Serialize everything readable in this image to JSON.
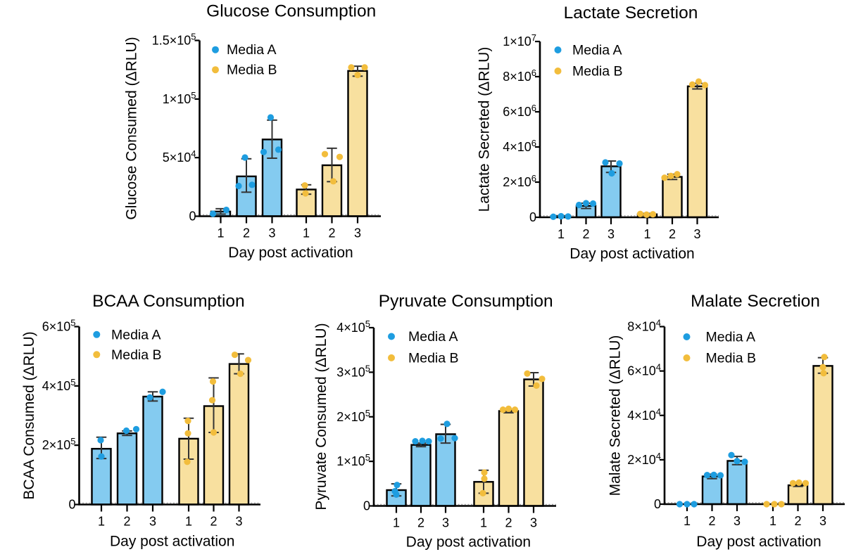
{
  "figure": {
    "background": "#ffffff",
    "legend": {
      "items": [
        "Media A",
        "Media B"
      ]
    },
    "colors": {
      "media_a_point": "#1E9DE0",
      "media_a_bar_fill": "#84CBF0",
      "media_b_point": "#F2BD3C",
      "media_b_bar_fill": "#F8E09F",
      "bar_outline": "#000000",
      "axis": "#000000",
      "error_bar": "#333333",
      "text": "#000000",
      "zero_line_dashes": "#999999"
    }
  },
  "chart_data": [
    {
      "type": "bar",
      "title": "Glucose Consumption",
      "xlabel": "Day post activation",
      "ylabel": "Glucose Consumed (ΔRLU)",
      "categories": [
        "1",
        "2",
        "3",
        "1",
        "2",
        "3"
      ],
      "ylim": [
        0,
        150000
      ],
      "grid": false,
      "legend_position": "top-left-inside",
      "legend": [
        "Media A",
        "Media B"
      ],
      "yticks": [
        {
          "value": 0,
          "base": "0",
          "exp": ""
        },
        {
          "value": 50000,
          "base": "5×10",
          "exp": "4"
        },
        {
          "value": 100000,
          "base": "1×10",
          "exp": "5"
        },
        {
          "value": 150000,
          "base": "1.5×10",
          "exp": "5"
        }
      ],
      "series": [
        {
          "name": "Media A",
          "bars": [
            {
              "mean": 4000,
              "err": [
                1800,
                6400
              ],
              "points": [
                {
                  "dx": -11,
                  "v": 2100
                },
                {
                  "dx": 8,
                  "v": 5400
                }
              ]
            },
            {
              "mean": 34000,
              "err": [
                20500,
                49000
              ],
              "points": [
                {
                  "dx": -11,
                  "v": 25800
                },
                {
                  "dx": 8,
                  "v": 26800
                },
                {
                  "dx": -2,
                  "v": 50100
                }
              ]
            },
            {
              "mean": 65500,
              "err": [
                49500,
                82000
              ],
              "points": [
                {
                  "dx": -12,
                  "v": 54800
                },
                {
                  "dx": 9,
                  "v": 56800
                },
                {
                  "dx": -2,
                  "v": 84300
                }
              ]
            }
          ]
        },
        {
          "name": "Media B",
          "bars": [
            {
              "mean": 22800,
              "err": [
                18800,
                26800
              ],
              "points": [
                {
                  "dx": -2,
                  "v": 26300
                },
                {
                  "dx": -1,
                  "v": 19500
                }
              ]
            },
            {
              "mean": 43500,
              "err": [
                29500,
                58000
              ],
              "points": [
                {
                  "dx": -10,
                  "v": 53000
                },
                {
                  "dx": 11,
                  "v": 50600
                },
                {
                  "dx": 2,
                  "v": 29800
                }
              ]
            },
            {
              "mean": 124000,
              "err": [
                119500,
                128000
              ],
              "points": [
                {
                  "dx": -9,
                  "v": 127000
                },
                {
                  "dx": 10,
                  "v": 127000
                },
                {
                  "dx": 0,
                  "v": 120500
                }
              ]
            }
          ]
        }
      ]
    },
    {
      "type": "bar",
      "title": "Lactate Secretion",
      "xlabel": "Day post activation",
      "ylabel": "Lactate Secreted (ΔRLU)",
      "categories": [
        "1",
        "2",
        "3",
        "1",
        "2",
        "3"
      ],
      "ylim": [
        0,
        10000000
      ],
      "grid": false,
      "legend_position": "top-left-inside",
      "legend": [
        "Media A",
        "Media B"
      ],
      "yticks": [
        {
          "value": 0,
          "base": "0",
          "exp": ""
        },
        {
          "value": 2000000,
          "base": "2×10",
          "exp": "6"
        },
        {
          "value": 4000000,
          "base": "4×10",
          "exp": "6"
        },
        {
          "value": 6000000,
          "base": "6×10",
          "exp": "6"
        },
        {
          "value": 8000000,
          "base": "8×10",
          "exp": "6"
        },
        {
          "value": 10000000,
          "base": "1×10",
          "exp": "7"
        }
      ],
      "series": [
        {
          "name": "Media A",
          "bars": [
            {
              "mean": 60000,
              "err": [
                30000,
                90000
              ],
              "points": [
                {
                  "dx": -11,
                  "v": 30000
                },
                {
                  "dx": 0,
                  "v": 60000
                },
                {
                  "dx": 10,
                  "v": 45000
                }
              ]
            },
            {
              "mean": 650000,
              "err": [
                500000,
                800000
              ],
              "points": [
                {
                  "dx": -10,
                  "v": 700000
                },
                {
                  "dx": 0,
                  "v": 800000
                },
                {
                  "dx": 10,
                  "v": 780000
                }
              ]
            },
            {
              "mean": 2900000,
              "err": [
                2550000,
                3200000
              ],
              "points": [
                {
                  "dx": -8,
                  "v": 3120000
                },
                {
                  "dx": 12,
                  "v": 3060000
                },
                {
                  "dx": 1,
                  "v": 2500000
                }
              ]
            }
          ]
        },
        {
          "name": "Media B",
          "bars": [
            {
              "mean": 170000,
              "err": [
                120000,
                220000
              ],
              "points": [
                {
                  "dx": -10,
                  "v": 190000
                },
                {
                  "dx": -1,
                  "v": 150000
                },
                {
                  "dx": 8,
                  "v": 170000
                }
              ]
            },
            {
              "mean": 2300000,
              "err": [
                2150000,
                2450000
              ],
              "points": [
                {
                  "dx": -11,
                  "v": 2250000
                },
                {
                  "dx": -2,
                  "v": 2350000
                },
                {
                  "dx": 7,
                  "v": 2450000
                }
              ]
            },
            {
              "mean": 7450000,
              "err": [
                7300000,
                7620000
              ],
              "points": [
                {
                  "dx": -7,
                  "v": 7550000
                },
                {
                  "dx": 2,
                  "v": 7720000
                },
                {
                  "dx": 11,
                  "v": 7520000
                }
              ]
            }
          ]
        }
      ]
    },
    {
      "type": "bar",
      "title": "BCAA Consumption",
      "xlabel": "Day post activation",
      "ylabel": "BCAA Consumed (ΔRLU)",
      "categories": [
        "1",
        "2",
        "3",
        "1",
        "2",
        "3"
      ],
      "ylim": [
        0,
        600000
      ],
      "grid": false,
      "legend_position": "top-left-inside",
      "legend": [
        "Media A",
        "Media B"
      ],
      "yticks": [
        {
          "value": 0,
          "base": "0",
          "exp": ""
        },
        {
          "value": 200000,
          "base": "2×10",
          "exp": "5"
        },
        {
          "value": 400000,
          "base": "4×10",
          "exp": "5"
        },
        {
          "value": 600000,
          "base": "6×10",
          "exp": "5"
        }
      ],
      "series": [
        {
          "name": "Media A",
          "bars": [
            {
              "mean": 188000,
              "err": [
                155000,
                227000
              ],
              "points": [
                {
                  "dx": -1,
                  "v": 217000
                },
                {
                  "dx": 0,
                  "v": 162000
                }
              ]
            },
            {
              "mean": 240000,
              "err": [
                233000,
                248000
              ],
              "points": [
                {
                  "dx": -1,
                  "v": 249000
                },
                {
                  "dx": 13,
                  "v": 254000
                }
              ]
            },
            {
              "mean": 364000,
              "err": [
                349000,
                380000
              ],
              "points": [
                {
                  "dx": -4,
                  "v": 361000
                },
                {
                  "dx": 14,
                  "v": 380000
                }
              ]
            }
          ]
        },
        {
          "name": "Media B",
          "bars": [
            {
              "mean": 222000,
              "err": [
                153000,
                291000
              ],
              "points": [
                {
                  "dx": -1,
                  "v": 282000
                },
                {
                  "dx": -1,
                  "v": 240000
                },
                {
                  "dx": -2,
                  "v": 144000
                }
              ]
            },
            {
              "mean": 332000,
              "err": [
                243000,
                427000
              ],
              "points": [
                {
                  "dx": -1,
                  "v": 415000
                },
                {
                  "dx": -2,
                  "v": 352000
                },
                {
                  "dx": 0,
                  "v": 243000
                }
              ]
            },
            {
              "mean": 474000,
              "err": [
                441000,
                508000
              ],
              "points": [
                {
                  "dx": -6,
                  "v": 505000
                },
                {
                  "dx": 13,
                  "v": 487000
                },
                {
                  "dx": 2,
                  "v": 441000
                }
              ]
            }
          ]
        }
      ]
    },
    {
      "type": "bar",
      "title": "Pyruvate Consumption",
      "xlabel": "Day post activation",
      "ylabel": "Pyruvate Consumed (ΔRLU)",
      "categories": [
        "1",
        "2",
        "3",
        "1",
        "2",
        "3"
      ],
      "ylim": [
        0,
        400000
      ],
      "grid": false,
      "legend_position": "top-left-inside",
      "legend": [
        "Media A",
        "Media B"
      ],
      "yticks": [
        {
          "value": 0,
          "base": "0",
          "exp": ""
        },
        {
          "value": 100000,
          "base": "1×10",
          "exp": "5"
        },
        {
          "value": 200000,
          "base": "2×10",
          "exp": "5"
        },
        {
          "value": 300000,
          "base": "3×10",
          "exp": "5"
        },
        {
          "value": 400000,
          "base": "4×10",
          "exp": "5"
        }
      ],
      "series": [
        {
          "name": "Media A",
          "bars": [
            {
              "mean": 35500,
              "err": [
                22500,
                49500
              ],
              "points": [
                {
                  "dx": 1,
                  "v": 47000
                },
                {
                  "dx": -2,
                  "v": 33000
                },
                {
                  "dx": 0,
                  "v": 25500
                }
              ]
            },
            {
              "mean": 137000,
              "err": [
                133000,
                141000
              ],
              "points": [
                {
                  "dx": -8,
                  "v": 145000
                },
                {
                  "dx": 2,
                  "v": 146000
                },
                {
                  "dx": 11,
                  "v": 145000
                }
              ]
            },
            {
              "mean": 161000,
              "err": [
                141000,
                183000
              ],
              "points": [
                {
                  "dx": -7,
                  "v": 151000
                },
                {
                  "dx": 13,
                  "v": 152000
                },
                {
                  "dx": 2,
                  "v": 184000
                }
              ]
            }
          ]
        },
        {
          "name": "Media B",
          "bars": [
            {
              "mean": 54000,
              "err": [
                28500,
                80000
              ],
              "points": [
                {
                  "dx": 1,
                  "v": 75000
                },
                {
                  "dx": 1,
                  "v": 61000
                },
                {
                  "dx": -1,
                  "v": 28600
                }
              ]
            },
            {
              "mean": 213000,
              "err": [
                209000,
                217000
              ],
              "points": [
                {
                  "dx": -8,
                  "v": 216000
                },
                {
                  "dx": 0,
                  "v": 218000
                },
                {
                  "dx": 9,
                  "v": 216000
                }
              ]
            },
            {
              "mean": 284000,
              "err": [
                269000,
                299000
              ],
              "points": [
                {
                  "dx": -9,
                  "v": 297000
                },
                {
                  "dx": 12,
                  "v": 285000
                },
                {
                  "dx": 4,
                  "v": 270000
                }
              ]
            }
          ]
        }
      ]
    },
    {
      "type": "bar",
      "title": "Malate Secretion",
      "xlabel": "Day post activation",
      "ylabel": "Malate Secreted (ΔRLU)",
      "categories": [
        "1",
        "2",
        "3",
        "1",
        "2",
        "3"
      ],
      "ylim": [
        0,
        80000
      ],
      "grid": false,
      "legend_position": "top-left-inside",
      "legend": [
        "Media A",
        "Media B"
      ],
      "yticks": [
        {
          "value": 0,
          "base": "0",
          "exp": ""
        },
        {
          "value": 20000,
          "base": "2×10",
          "exp": "4"
        },
        {
          "value": 40000,
          "base": "4×10",
          "exp": "4"
        },
        {
          "value": 60000,
          "base": "6×10",
          "exp": "4"
        },
        {
          "value": 80000,
          "base": "8×10",
          "exp": "4"
        }
      ],
      "series": [
        {
          "name": "Media A",
          "bars": [
            {
              "mean": 0,
              "err": null,
              "points": [
                {
                  "dx": -10.5,
                  "v": 0
                },
                {
                  "dx": 0,
                  "v": 0
                },
                {
                  "dx": 10,
                  "v": 0
                }
              ]
            },
            {
              "mean": 12500,
              "err": [
                11500,
                13500
              ],
              "points": [
                {
                  "dx": -7,
                  "v": 13100
                },
                {
                  "dx": 2.5,
                  "v": 13200
                },
                {
                  "dx": 12,
                  "v": 13000
                }
              ]
            },
            {
              "mean": 19500,
              "err": [
                17800,
                21500
              ],
              "points": [
                {
                  "dx": -8,
                  "v": 22100
                },
                {
                  "dx": 0,
                  "v": 19400
                },
                {
                  "dx": 11,
                  "v": 19100
                }
              ]
            }
          ]
        },
        {
          "name": "Media B",
          "bars": [
            {
              "mean": 0,
              "err": null,
              "points": [
                {
                  "dx": -9,
                  "v": 0
                },
                {
                  "dx": 2,
                  "v": 0
                },
                {
                  "dx": 12,
                  "v": 0
                }
              ]
            },
            {
              "mean": 8500,
              "err": [
                8000,
                9200
              ],
              "points": [
                {
                  "dx": -7,
                  "v": 9450
                },
                {
                  "dx": 1.5,
                  "v": 9700
                },
                {
                  "dx": 11,
                  "v": 9450
                }
              ]
            },
            {
              "mean": 62300,
              "err": [
                59000,
                66000
              ],
              "points": [
                {
                  "dx": 2,
                  "v": 66300
                },
                {
                  "dx": 0,
                  "v": 61700
                },
                {
                  "dx": 1,
                  "v": 59000
                }
              ]
            }
          ]
        }
      ]
    }
  ]
}
